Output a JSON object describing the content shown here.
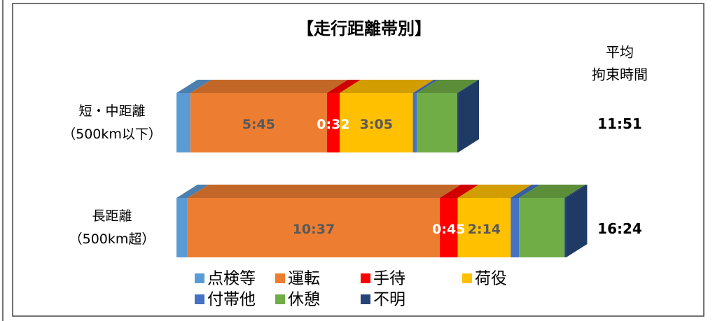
{
  "chart_data": {
    "type": "bar3d",
    "title": "【走行距離帯別】",
    "categories": [
      [
        "短・中距離",
        "（500km以下）"
      ],
      [
        "長距離",
        "（500km超）"
      ]
    ],
    "series": [
      {
        "name": "点検等",
        "color": "#5b9bd5",
        "values": [
          35,
          28
        ]
      },
      {
        "name": "運転",
        "color": "#ed7d31",
        "values": [
          345,
          637
        ],
        "value_labels": [
          "5:45",
          "10:37"
        ],
        "label_color": "#595959"
      },
      {
        "name": "手待",
        "color": "#ff0000",
        "values": [
          32,
          45
        ],
        "value_labels": [
          "0:32",
          "0:45"
        ],
        "label_color": "#ffffff"
      },
      {
        "name": "荷役",
        "color": "#ffc000",
        "values": [
          185,
          134
        ],
        "value_labels": [
          "3:05",
          "2:14"
        ],
        "label_color": "#595959"
      },
      {
        "name": "付帯他",
        "color": "#4472c4",
        "values": [
          10,
          21
        ]
      },
      {
        "name": "休憩",
        "color": "#70ad47",
        "values": [
          102,
          115
        ]
      },
      {
        "name": "不明",
        "color": "#264478",
        "values": [
          2,
          4
        ]
      }
    ],
    "total_header": [
      "平均",
      "拘束時間"
    ],
    "totals": [
      711,
      984
    ],
    "total_labels": [
      "11:51",
      "16:24"
    ]
  }
}
